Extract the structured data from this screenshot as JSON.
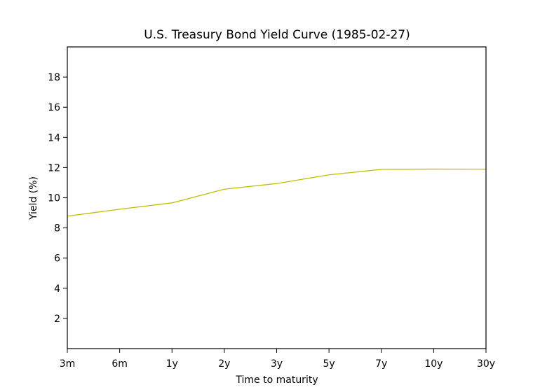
{
  "chart_data": {
    "type": "line",
    "title": "U.S. Treasury Bond Yield Curve (1985-02-27)",
    "xlabel": "Time to maturity",
    "ylabel": "Yield (%)",
    "categories": [
      "3m",
      "6m",
      "1y",
      "2y",
      "3y",
      "5y",
      "7y",
      "10y",
      "30y"
    ],
    "series": [
      {
        "color": "#bfbf00",
        "values": [
          8.78,
          9.24,
          9.66,
          10.57,
          10.94,
          11.52,
          11.88,
          11.9,
          11.89
        ]
      }
    ],
    "ylim": [
      0,
      20
    ],
    "yticks": [
      2,
      4,
      6,
      8,
      10,
      12,
      14,
      16,
      18
    ],
    "grid": false,
    "legend": "none"
  }
}
